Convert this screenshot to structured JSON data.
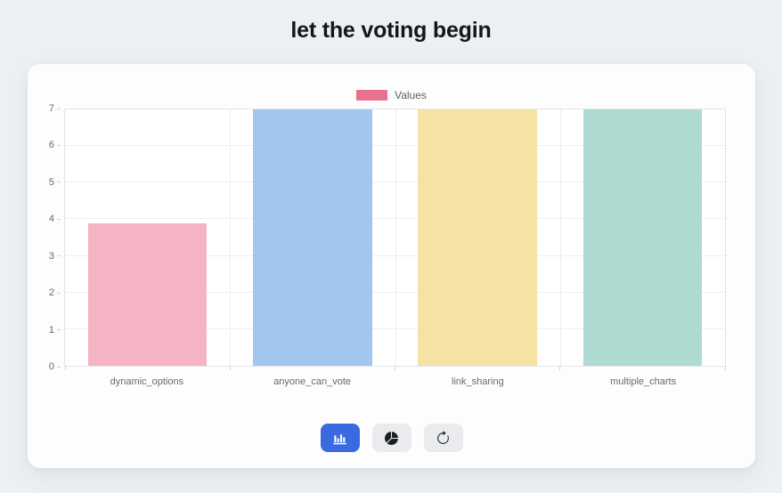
{
  "page": {
    "title": "let the voting begin"
  },
  "legend": {
    "label": "Values",
    "swatch_color": "#e8718b"
  },
  "chart_data": {
    "type": "bar",
    "title": "let the voting begin",
    "categories": [
      "dynamic_options",
      "anyone_can_vote",
      "link_sharing",
      "multiple_charts"
    ],
    "series": [
      {
        "name": "Values",
        "values": [
          3.9,
          7,
          7,
          7
        ]
      }
    ],
    "bar_colors": [
      "#f4b4c4",
      "#a1c7ee",
      "#f6e2a3",
      "#aedad1"
    ],
    "xlabel": "",
    "ylabel": "",
    "ylim": [
      0,
      7
    ],
    "yticks": [
      0,
      1,
      2,
      3,
      4,
      5,
      6,
      7
    ],
    "grid": true,
    "legend_position": "top",
    "legend_label": "Values"
  },
  "toolbar": {
    "buttons": [
      {
        "name": "bar-chart-button",
        "icon": "bar-chart-icon",
        "active": true
      },
      {
        "name": "pie-chart-button",
        "icon": "pie-chart-icon",
        "active": false
      },
      {
        "name": "refresh-button",
        "icon": "refresh-icon",
        "active": false
      }
    ],
    "active_bg": "#3b6ae0",
    "active_icon_color": "#ffffff",
    "inactive_bg": "#e9ebef",
    "inactive_icon_color": "#1b1e22"
  },
  "colors": {
    "page_background": "#edf0f3",
    "card_background": "#fdfdfe",
    "grid_line": "#eceef1",
    "axis_border": "#e2e5e9",
    "tick_label": "#66696e",
    "title": "#14171a"
  }
}
